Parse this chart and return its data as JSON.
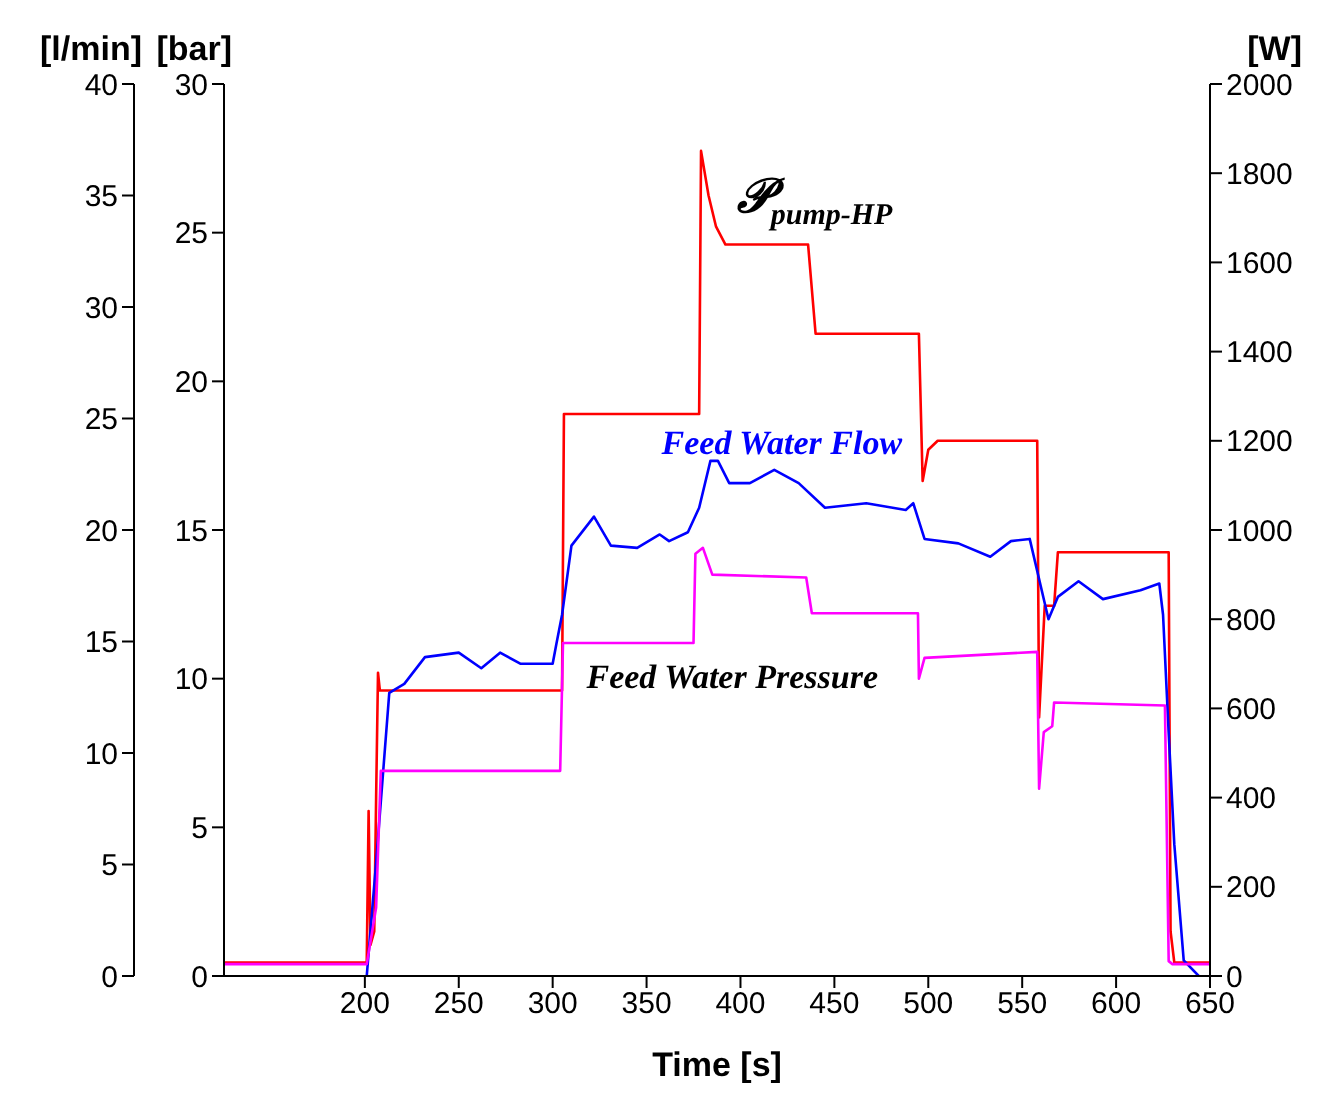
{
  "chart_data": {
    "type": "line",
    "xlabel": "Time [s]",
    "ylabel": "[bar]",
    "y2label": "[l/min]",
    "y3label": "[W]",
    "xlim": [
      125,
      650
    ],
    "xticks": [
      200,
      250,
      300,
      350,
      400,
      450,
      500,
      550,
      600,
      650
    ],
    "ylim": [
      0,
      30
    ],
    "yticks": [
      0,
      5,
      10,
      15,
      20,
      25,
      30
    ],
    "y2lim": [
      0,
      40
    ],
    "y2ticks": [
      0,
      5,
      10,
      15,
      20,
      25,
      30,
      35,
      40
    ],
    "y3lim": [
      0,
      2000
    ],
    "y3ticks": [
      0,
      200,
      400,
      600,
      800,
      1000,
      1200,
      1400,
      1600,
      1800,
      2000
    ],
    "series": [
      {
        "name": "𝒫$_{pump-HP}$",
        "color": "#ff0000",
        "axis": "y3",
        "x": [
          125,
          200,
          201,
          202,
          203,
          205,
          206,
          207,
          208,
          305,
          306,
          377,
          378,
          379,
          383,
          387,
          392,
          436,
          440,
          495,
          497,
          500,
          505,
          558,
          559,
          562,
          564,
          567,
          569,
          628,
          629,
          631,
          650
        ],
        "values": [
          30,
          30,
          30,
          370,
          70,
          100,
          400,
          680,
          640,
          640,
          1260,
          1260,
          1260,
          1850,
          1750,
          1680,
          1640,
          1640,
          1440,
          1440,
          1110,
          1180,
          1200,
          1200,
          580,
          830,
          830,
          830,
          950,
          950,
          100,
          30,
          30
        ]
      },
      {
        "name": "Feed Water Flow",
        "color": "#0000ff",
        "axis": "y2",
        "x": [
          201,
          206,
          213,
          221,
          232,
          250,
          262,
          272,
          283,
          300,
          302,
          305,
          310,
          322,
          331,
          345,
          357,
          362,
          372,
          378,
          384,
          388,
          394,
          405,
          418,
          431,
          445,
          467,
          488,
          492,
          498,
          516,
          533,
          544,
          554,
          564,
          569,
          580,
          593,
          613,
          623,
          625,
          628,
          631,
          636,
          644
        ],
        "values": [
          0,
          5.1,
          12.7,
          13.1,
          14.3,
          14.5,
          13.8,
          14.5,
          14.0,
          14.0,
          14.9,
          16.2,
          19.3,
          20.6,
          19.3,
          19.2,
          19.8,
          19.5,
          19.9,
          21.0,
          23.1,
          23.1,
          22.1,
          22.1,
          22.7,
          22.1,
          21.0,
          21.2,
          20.9,
          21.2,
          19.6,
          19.4,
          18.8,
          19.5,
          19.6,
          16.0,
          17.0,
          17.7,
          16.9,
          17.3,
          17.6,
          16.2,
          10.9,
          5.9,
          0.7,
          0
        ]
      },
      {
        "name": "Feed Water Pressure",
        "color": "#ff00ff",
        "axis": "y",
        "x": [
          125,
          201,
          206,
          208.5,
          304,
          305.5,
          375,
          376,
          380,
          385,
          435,
          438,
          494.5,
          495,
          498,
          558,
          559,
          561.5,
          566,
          567,
          626,
          628,
          630,
          650
        ],
        "values": [
          0.4,
          0.4,
          2.3,
          6.9,
          6.9,
          11.2,
          11.2,
          14.2,
          14.4,
          13.5,
          13.4,
          12.2,
          12.2,
          10.0,
          10.7,
          10.9,
          6.3,
          8.2,
          8.4,
          9.2,
          9.1,
          0.5,
          0.4,
          0.4
        ]
      }
    ]
  }
}
